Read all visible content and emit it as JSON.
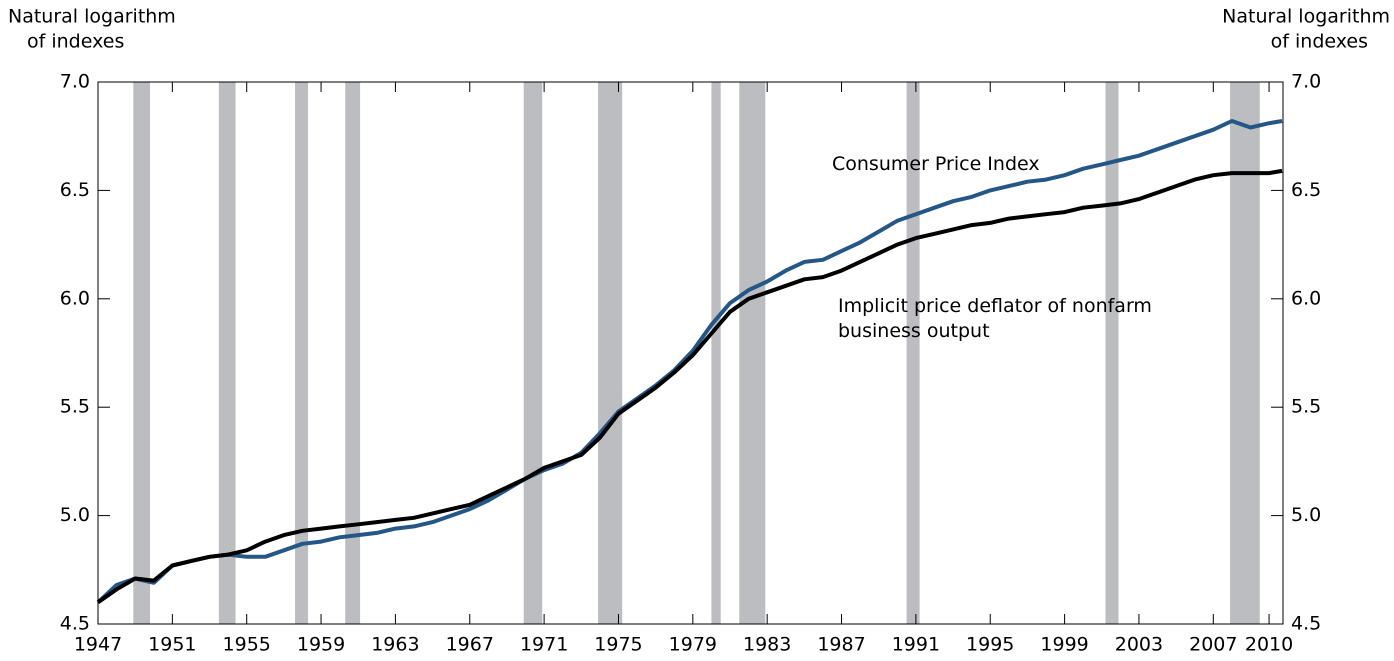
{
  "chart_data": {
    "type": "line",
    "ylabel": [
      "Natural logarithm",
      "of indexes"
    ],
    "y2label": [
      "Natural logarithm",
      "of indexes"
    ],
    "x": [
      1947,
      1948,
      1949,
      1950,
      1951,
      1952,
      1953,
      1954,
      1955,
      1956,
      1957,
      1958,
      1959,
      1960,
      1961,
      1962,
      1963,
      1964,
      1965,
      1966,
      1967,
      1968,
      1969,
      1970,
      1971,
      1972,
      1973,
      1974,
      1975,
      1976,
      1977,
      1978,
      1979,
      1980,
      1981,
      1982,
      1983,
      1984,
      1985,
      1986,
      1987,
      1988,
      1989,
      1990,
      1991,
      1992,
      1993,
      1994,
      1995,
      1996,
      1997,
      1998,
      1999,
      2000,
      2001,
      2002,
      2003,
      2004,
      2005,
      2006,
      2007,
      2008,
      2009,
      2010,
      2010.7
    ],
    "series": [
      {
        "name": "Consumer Price Index",
        "color": "#245686",
        "values": [
          4.6,
          4.68,
          4.71,
          4.69,
          4.77,
          4.79,
          4.81,
          4.82,
          4.81,
          4.81,
          4.84,
          4.87,
          4.88,
          4.9,
          4.91,
          4.92,
          4.94,
          4.95,
          4.97,
          5.0,
          5.03,
          5.07,
          5.12,
          5.17,
          5.21,
          5.24,
          5.29,
          5.38,
          5.48,
          5.54,
          5.6,
          5.67,
          5.76,
          5.88,
          5.98,
          6.04,
          6.08,
          6.13,
          6.17,
          6.18,
          6.22,
          6.26,
          6.31,
          6.36,
          6.39,
          6.42,
          6.45,
          6.47,
          6.5,
          6.52,
          6.54,
          6.55,
          6.57,
          6.6,
          6.62,
          6.64,
          6.66,
          6.69,
          6.72,
          6.75,
          6.78,
          6.82,
          6.79,
          6.81,
          6.82
        ]
      },
      {
        "name": "Implicit price deflator of nonfarm business output",
        "color": "#000000",
        "values": [
          4.6,
          4.66,
          4.71,
          4.7,
          4.77,
          4.79,
          4.81,
          4.82,
          4.84,
          4.88,
          4.91,
          4.93,
          4.94,
          4.95,
          4.96,
          4.97,
          4.98,
          4.99,
          5.01,
          5.03,
          5.05,
          5.09,
          5.13,
          5.17,
          5.22,
          5.25,
          5.28,
          5.36,
          5.47,
          5.53,
          5.59,
          5.66,
          5.74,
          5.84,
          5.94,
          6.0,
          6.03,
          6.06,
          6.09,
          6.1,
          6.13,
          6.17,
          6.21,
          6.25,
          6.28,
          6.3,
          6.32,
          6.34,
          6.35,
          6.37,
          6.38,
          6.39,
          6.4,
          6.42,
          6.43,
          6.44,
          6.46,
          6.49,
          6.52,
          6.55,
          6.57,
          6.58,
          6.58,
          6.58,
          6.59
        ]
      }
    ],
    "recessions": [
      [
        1948.9,
        1949.8
      ],
      [
        1953.5,
        1954.4
      ],
      [
        1957.6,
        1958.3
      ],
      [
        1960.3,
        1961.1
      ],
      [
        1969.9,
        1970.9
      ],
      [
        1973.9,
        1975.2
      ],
      [
        1980.0,
        1980.5
      ],
      [
        1981.5,
        1982.9
      ],
      [
        1990.5,
        1991.2
      ],
      [
        2001.2,
        2001.9
      ],
      [
        2007.9,
        2009.5
      ]
    ],
    "recession_color": "#bbbdc0",
    "xlim": [
      1947,
      2010.75
    ],
    "xticks": [
      1947,
      1951,
      1955,
      1959,
      1963,
      1967,
      1971,
      1975,
      1979,
      1983,
      1987,
      1991,
      1995,
      1999,
      2003,
      2007,
      2010
    ],
    "ylim": [
      4.5,
      7.0
    ],
    "yticks": [
      4.5,
      {
        "value": 5,
        "label": "5.0"
      },
      5.5,
      {
        "value": 6,
        "label": "6.0"
      },
      6.5,
      {
        "value": 7,
        "label": "7.0"
      }
    ],
    "y2lim": [
      4.5,
      7.0
    ],
    "y2ticks": [
      4.5,
      {
        "value": 5,
        "label": "5.0"
      },
      5.5,
      {
        "value": 6,
        "label": "6.0"
      },
      6.5,
      {
        "value": 7,
        "label": "7.0"
      }
    ]
  }
}
